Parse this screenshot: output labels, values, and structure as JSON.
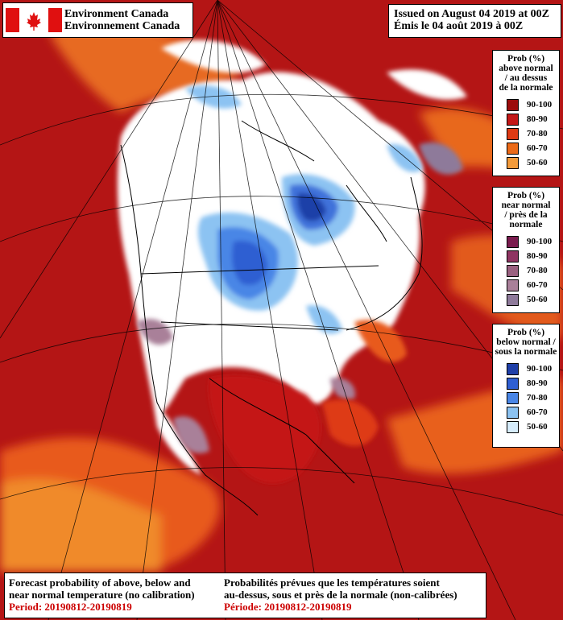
{
  "agency": {
    "name_en": "Environment Canada",
    "name_fr": "Environnement Canada",
    "flag_icon": "canada-flag-icon"
  },
  "issued": {
    "en": "Issued on August 04 2019 at 00Z",
    "fr": "Émis le 04 août 2019 à 00Z"
  },
  "legends": [
    {
      "title": [
        "Prob (%)",
        "above normal",
        "/ au dessus",
        "de la normale"
      ],
      "items": [
        {
          "label": "90-100",
          "color": "#9c0c0c"
        },
        {
          "label": "80-90",
          "color": "#c41818"
        },
        {
          "label": "70-80",
          "color": "#de3a14"
        },
        {
          "label": "60-70",
          "color": "#ec6a18"
        },
        {
          "label": "50-60",
          "color": "#f39a3a"
        }
      ]
    },
    {
      "title": [
        "Prob (%)",
        "near normal",
        "/ près de la",
        "normale"
      ],
      "items": [
        {
          "label": "90-100",
          "color": "#7a1b4e"
        },
        {
          "label": "80-90",
          "color": "#8f3562"
        },
        {
          "label": "70-80",
          "color": "#9a6180"
        },
        {
          "label": "60-70",
          "color": "#a98099"
        },
        {
          "label": "50-60",
          "color": "#8e7a9a"
        }
      ]
    },
    {
      "title": [
        "Prob (%)",
        "below normal /",
        "sous la normale"
      ],
      "items": [
        {
          "label": "90-100",
          "color": "#1f3fa8"
        },
        {
          "label": "80-90",
          "color": "#2f5fd2"
        },
        {
          "label": "70-80",
          "color": "#4a86e6"
        },
        {
          "label": "60-70",
          "color": "#8cc3f2"
        },
        {
          "label": "50-60",
          "color": "#d6ecfb"
        }
      ]
    }
  ],
  "caption": {
    "en_lines": [
      "Forecast probability of above, below and",
      "near normal temperature (no calibration)"
    ],
    "en_period": "Period: 20190812-20190819",
    "fr_lines": [
      "Probabilités prévues que les températures soient",
      "au-dessus, sous et près de la normale (non-calibrées)"
    ],
    "fr_period": "Période: 20190812-20190819"
  },
  "map": {
    "background_color": "#b41515",
    "land_white": "#ffffff"
  }
}
